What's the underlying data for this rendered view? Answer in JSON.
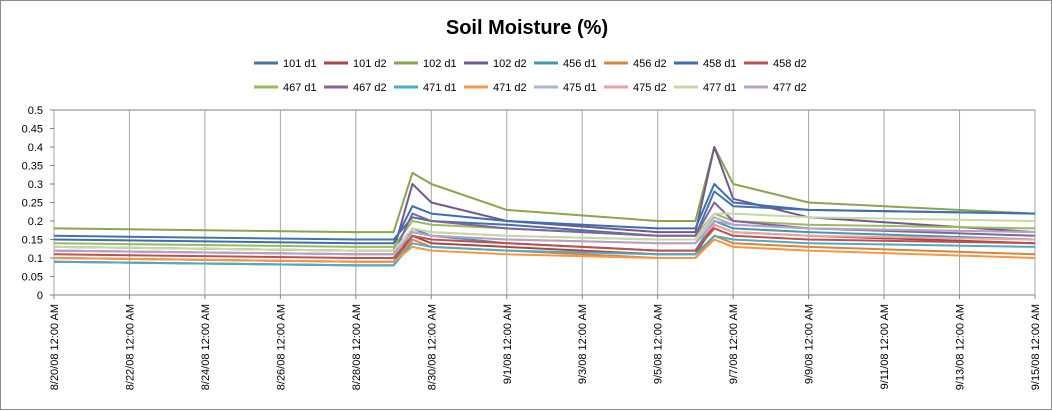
{
  "chart_data": {
    "type": "line",
    "title": "Soil Moisture (%)",
    "xlabel": "",
    "ylabel": "",
    "ylim": [
      0,
      0.5
    ],
    "yticks": [
      "0",
      "0.05",
      "0.1",
      "0.15",
      "0.2",
      "0.25",
      "0.3",
      "0.35",
      "0.4",
      "0.45",
      "0.5"
    ],
    "xlim_days_from_start": [
      0,
      26
    ],
    "xticks": [
      "8/20/08 12:00 AM",
      "8/22/08 12:00 AM",
      "8/24/08 12:00 AM",
      "8/26/08 12:00 AM",
      "8/28/08 12:00 AM",
      "8/30/08 12:00 AM",
      "9/1/08 12:00 AM",
      "9/3/08 12:00 AM",
      "9/5/08 12:00 AM",
      "9/7/08 12:00 AM",
      "9/9/08 12:00 AM",
      "9/11/08 12:00 AM",
      "9/13/08 12:00 AM",
      "9/15/08 12:00 AM"
    ],
    "grid": "vertical",
    "legend_position": "top",
    "x": [
      "8/20/08 12:00 AM",
      "8/28/08 12:00 AM",
      "8/29/08 12:00 AM",
      "8/29/08 12:00 PM",
      "8/30/08 12:00 AM",
      "9/1/08 12:00 AM",
      "9/5/08 12:00 AM",
      "9/6/08 12:00 AM",
      "9/6/08 12:00 PM",
      "9/7/08 12:00 AM",
      "9/9/08 12:00 AM",
      "9/15/08 12:00 AM"
    ],
    "series": [
      {
        "name": "101 d1",
        "color": "#4572a7",
        "values": [
          0.16,
          0.15,
          0.15,
          0.21,
          0.2,
          0.19,
          0.16,
          0.16,
          0.28,
          0.24,
          0.23,
          0.22
        ]
      },
      {
        "name": "101 d2",
        "color": "#aa4643",
        "values": [
          0.1,
          0.09,
          0.09,
          0.16,
          0.14,
          0.13,
          0.11,
          0.11,
          0.19,
          0.17,
          0.16,
          0.14
        ]
      },
      {
        "name": "102 d1",
        "color": "#89a54e",
        "values": [
          0.18,
          0.17,
          0.17,
          0.33,
          0.3,
          0.23,
          0.2,
          0.2,
          0.4,
          0.3,
          0.25,
          0.22
        ]
      },
      {
        "name": "102 d2",
        "color": "#71588f",
        "values": [
          0.13,
          0.12,
          0.12,
          0.3,
          0.25,
          0.2,
          0.17,
          0.17,
          0.4,
          0.26,
          0.21,
          0.17
        ]
      },
      {
        "name": "456 d1",
        "color": "#4198af",
        "values": [
          0.09,
          0.08,
          0.08,
          0.18,
          0.16,
          0.14,
          0.12,
          0.12,
          0.2,
          0.18,
          0.17,
          0.15
        ]
      },
      {
        "name": "456 d2",
        "color": "#db843d",
        "values": [
          0.09,
          0.08,
          0.08,
          0.15,
          0.13,
          0.12,
          0.1,
          0.1,
          0.16,
          0.14,
          0.13,
          0.11
        ]
      },
      {
        "name": "458 d1",
        "color": "#3d6fb0",
        "values": [
          0.15,
          0.14,
          0.14,
          0.24,
          0.22,
          0.2,
          0.18,
          0.18,
          0.3,
          0.25,
          0.23,
          0.22
        ]
      },
      {
        "name": "458 d2",
        "color": "#c0504d",
        "values": [
          0.11,
          0.1,
          0.1,
          0.16,
          0.15,
          0.14,
          0.12,
          0.12,
          0.18,
          0.16,
          0.15,
          0.14
        ]
      },
      {
        "name": "467 d1",
        "color": "#9bbb59",
        "values": [
          0.14,
          0.13,
          0.13,
          0.2,
          0.19,
          0.18,
          0.16,
          0.16,
          0.22,
          0.2,
          0.19,
          0.18
        ]
      },
      {
        "name": "467 d2",
        "color": "#8064a2",
        "values": [
          0.12,
          0.11,
          0.11,
          0.22,
          0.2,
          0.18,
          0.16,
          0.16,
          0.25,
          0.2,
          0.18,
          0.16
        ]
      },
      {
        "name": "471 d1",
        "color": "#4bacc6",
        "values": [
          0.09,
          0.08,
          0.08,
          0.14,
          0.13,
          0.12,
          0.11,
          0.11,
          0.16,
          0.15,
          0.14,
          0.13
        ]
      },
      {
        "name": "471 d2",
        "color": "#f79646",
        "values": [
          0.1,
          0.09,
          0.09,
          0.13,
          0.12,
          0.11,
          0.1,
          0.1,
          0.15,
          0.13,
          0.12,
          0.1
        ]
      },
      {
        "name": "475 d1",
        "color": "#a5b5d6",
        "values": [
          0.13,
          0.12,
          0.12,
          0.18,
          0.17,
          0.16,
          0.15,
          0.15,
          0.21,
          0.19,
          0.18,
          0.17
        ]
      },
      {
        "name": "475 d2",
        "color": "#e6a6a6",
        "values": [
          0.12,
          0.11,
          0.11,
          0.17,
          0.16,
          0.15,
          0.14,
          0.14,
          0.19,
          0.17,
          0.16,
          0.15
        ]
      },
      {
        "name": "477 d1",
        "color": "#c6d9a5",
        "values": [
          0.13,
          0.12,
          0.12,
          0.18,
          0.17,
          0.16,
          0.15,
          0.15,
          0.22,
          0.22,
          0.21,
          0.2
        ]
      },
      {
        "name": "477 d2",
        "color": "#b3a2c7",
        "values": [
          0.12,
          0.11,
          0.11,
          0.17,
          0.16,
          0.15,
          0.14,
          0.14,
          0.2,
          0.19,
          0.18,
          0.17
        ]
      }
    ]
  }
}
